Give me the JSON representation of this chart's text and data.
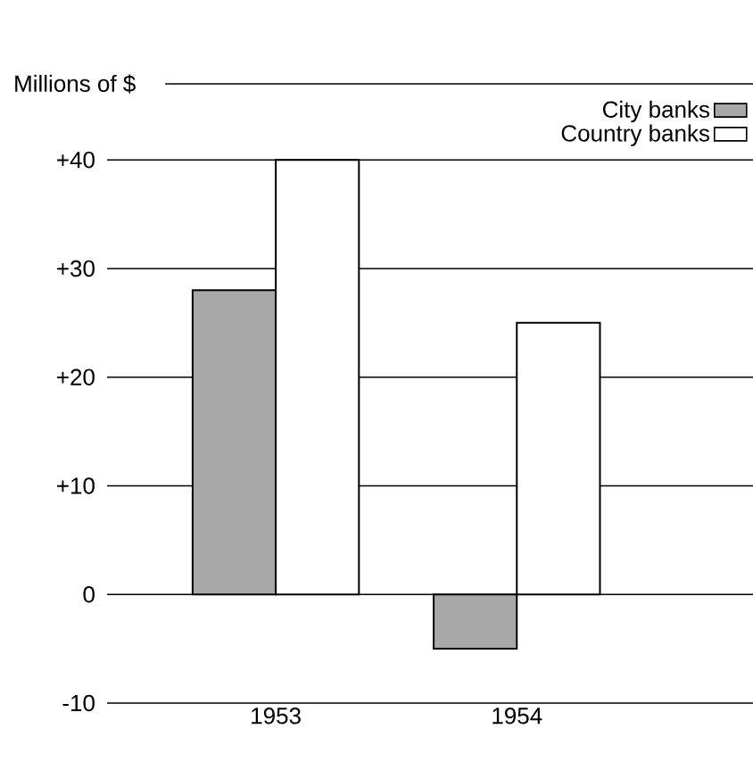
{
  "chart_data": {
    "type": "bar",
    "ylabel": "Millions of $",
    "categories": [
      "1953",
      "1954"
    ],
    "series": [
      {
        "name": "City banks",
        "color": "#a8a8a8",
        "values": [
          28,
          -5
        ]
      },
      {
        "name": "Country banks",
        "color": "#ffffff",
        "values": [
          40,
          25
        ]
      }
    ],
    "ylim": [
      -10,
      47
    ],
    "yticks": [
      -10,
      {
        "value": 0,
        "label": "0"
      },
      {
        "value": 10,
        "label": "+10"
      },
      {
        "value": 20,
        "label": "+20"
      },
      {
        "value": 30,
        "label": "+30"
      },
      {
        "value": 40,
        "label": "+40"
      }
    ],
    "grid": "y",
    "legend": "top right"
  }
}
